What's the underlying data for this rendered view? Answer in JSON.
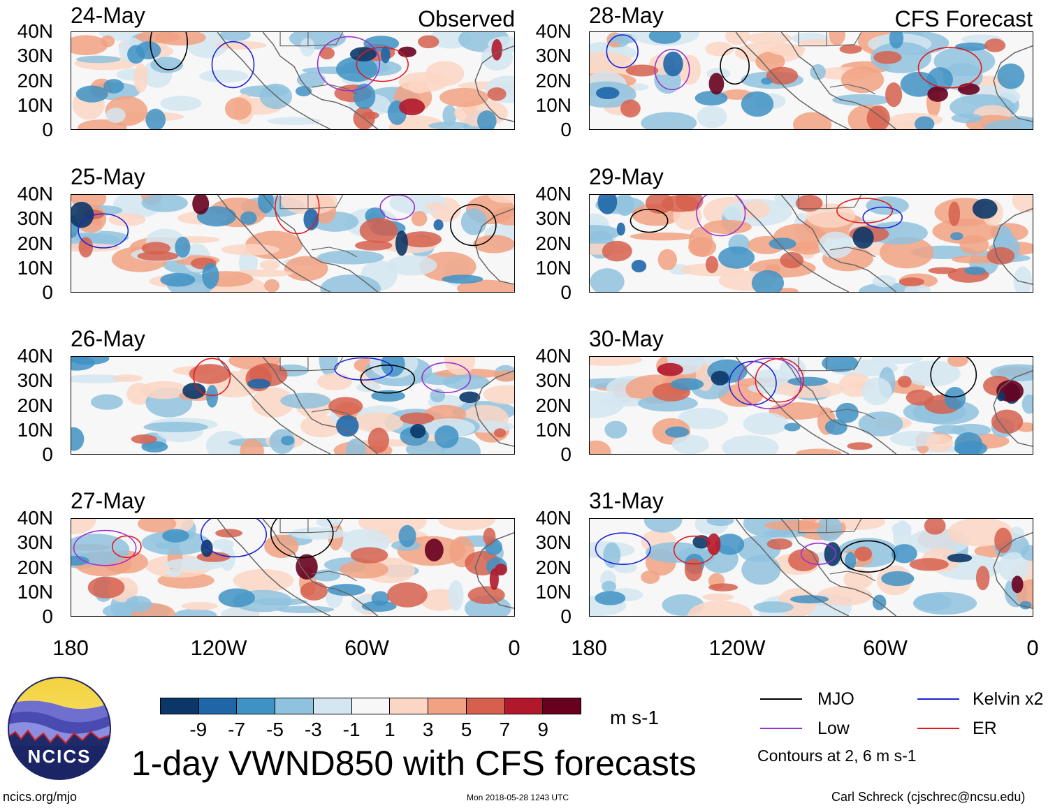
{
  "figure": {
    "title": "1-day VWND850 with CFS forecasts",
    "observed_label": "Observed",
    "forecast_label": "CFS Forecast",
    "units": "m s-1",
    "footer_left": "ncics.org/mjo",
    "footer_center": "Mon 2018-05-28 1243 UTC",
    "footer_right": "Carl Schreck (cjschrec@ncsu.edu)",
    "logo_text": "NCICS"
  },
  "panels": [
    {
      "date": "24-May",
      "kind": "observed"
    },
    {
      "date": "25-May",
      "kind": "observed"
    },
    {
      "date": "26-May",
      "kind": "observed"
    },
    {
      "date": "27-May",
      "kind": "observed"
    },
    {
      "date": "28-May",
      "kind": "forecast"
    },
    {
      "date": "29-May",
      "kind": "forecast"
    },
    {
      "date": "30-May",
      "kind": "forecast"
    },
    {
      "date": "31-May",
      "kind": "forecast"
    }
  ],
  "axes": {
    "y_ticks": [
      "40N",
      "30N",
      "20N",
      "10N",
      "0"
    ],
    "x_ticks": [
      "180",
      "120W",
      "60W",
      "0"
    ]
  },
  "colorbar": {
    "labels": [
      "-9",
      "-7",
      "-5",
      "-3",
      "-1",
      "1",
      "3",
      "5",
      "7",
      "9"
    ],
    "colors": [
      "#0b3768",
      "#1f66a8",
      "#3f92c4",
      "#8fc2de",
      "#d3e6f1",
      "#f7f7f7",
      "#fcd6c4",
      "#f1a283",
      "#d6604d",
      "#b2182b",
      "#67001f"
    ]
  },
  "legend": {
    "items": [
      {
        "label": "MJO",
        "color": "#000000"
      },
      {
        "label": "Kelvin x2",
        "color": "#1b22d6"
      },
      {
        "label": "Low",
        "color": "#9a32cd"
      },
      {
        "label": "ER",
        "color": "#e4181c"
      }
    ],
    "note": "Contours at 2, 6 m s-1"
  }
}
